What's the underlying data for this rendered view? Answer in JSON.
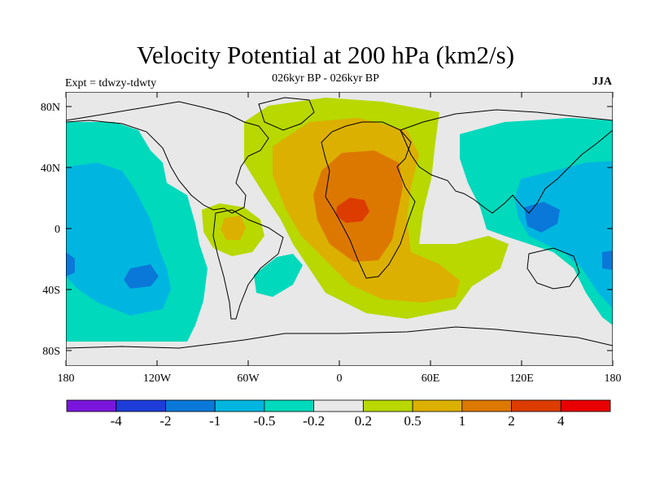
{
  "map": {
    "title": "Velocity Potential at 200 hPa (km2/s)",
    "subtitle": "026kyr BP - 026kyr BP",
    "left_label": "Expt = tdwzy-tdwty",
    "right_label": "JJA",
    "x_ticks": [
      "180",
      "120W",
      "60W",
      "0",
      "60E",
      "120E",
      "180"
    ],
    "y_ticks": [
      "80N",
      "40N",
      "0",
      "40S",
      "80S"
    ]
  },
  "colorbar": {
    "colors": [
      "#7a16dc",
      "#1e3cd8",
      "#0a78d8",
      "#00b6e0",
      "#00d9bc",
      "#e8e8e8",
      "#b8d800",
      "#dcb000",
      "#dc7800",
      "#dc3c00",
      "#e80000"
    ],
    "labels": [
      "-4",
      "-2",
      "-1",
      "-0.5",
      "-0.2",
      "0.2",
      "0.5",
      "1",
      "2",
      "4"
    ]
  }
}
